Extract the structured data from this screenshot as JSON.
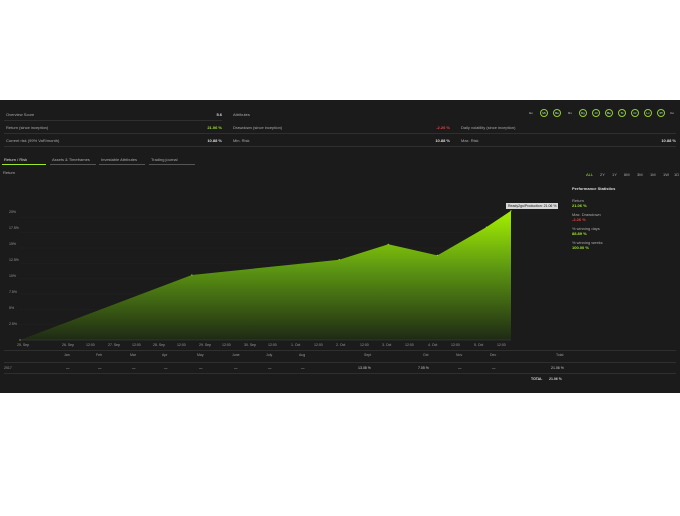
{
  "summary": {
    "overview_label": "Overview Score",
    "overview_value": "5.6",
    "return_label": "Return (since inception)",
    "return_value": "21.06 %",
    "current_risk_label": "Current risk (99% VaR/month)",
    "current_risk_value": "10.88 %",
    "attributes_label": "Attributes",
    "drawdown_label": "Drawdown (since inception)",
    "drawdown_value": "-2.26 %",
    "min_risk_label": "Min. Risk",
    "min_risk_value": "10.88 %",
    "daily_vol_label": "Daily volatility (since inception)",
    "daily_vol_value": "",
    "max_risk_label": "Max. Risk",
    "max_risk_value": "10.88 %"
  },
  "attribute_icons": [
    "Ex",
    "Mi",
    "Re",
    "Rs",
    "Dy",
    "Cl",
    "Be",
    "Tc",
    "Cr",
    "Lv",
    "Pf",
    "Co"
  ],
  "tabs": [
    "Return / Risk",
    "Assets & Timeframes",
    "Investable Attributes",
    "Trading journal"
  ],
  "chart_header": "Return",
  "ranges": [
    "ALL",
    "2Y",
    "1Y",
    "6M",
    "3M",
    "1M",
    "1W",
    "1D"
  ],
  "chart_data": {
    "type": "area",
    "x": [
      "25. Sep",
      "26. Sep",
      "12:00",
      "27. Sep",
      "12:00",
      "28. Sep",
      "12:00",
      "29. Sep",
      "12:00",
      "30. Sep",
      "12:00",
      "1. Oct",
      "12:00",
      "2. Oct",
      "12:00",
      "3. Oct",
      "12:00",
      "4. Oct",
      "12:00",
      "5. Oct",
      "12:00"
    ],
    "points": [
      {
        "x": "25. Sep",
        "y": 0
      },
      {
        "x": "29. Sep",
        "y": 10.6
      },
      {
        "x": "2. Oct",
        "y": 13.1
      },
      {
        "x": "3. Oct",
        "y": 15.6
      },
      {
        "x": "4. Oct",
        "y": 13.8
      },
      {
        "x": "5. Oct",
        "y": 18.4
      },
      {
        "x": "12:00",
        "y": 21.06
      }
    ],
    "y_ticks": [
      "20%",
      "17.5%",
      "15%",
      "12.5%",
      "10%",
      "7.5%",
      "5%",
      "2.5%"
    ],
    "ylim": [
      0,
      22.5
    ],
    "tooltip": "Ready2go/Production: 21.06 %",
    "color": "#9ee82a"
  },
  "stats": {
    "title": "Performance Statistics",
    "return_label": "Return",
    "return_value": "21.06 %",
    "maxdd_label": "Max. Drawdown",
    "maxdd_value": "-2.26 %",
    "windays_label": "% winning days",
    "windays_value": "88.89 %",
    "winweeks_label": "% winning weeks",
    "winweeks_value": "100.00 %"
  },
  "monthly": {
    "months": [
      "Jan",
      "Feb",
      "Mar",
      "Apr",
      "May",
      "June",
      "July",
      "Aug",
      "Sept",
      "Oct",
      "Nov",
      "Dec",
      "Total"
    ],
    "year": "2017",
    "values": [
      "—",
      "—",
      "—",
      "—",
      "—",
      "—",
      "—",
      "—",
      "13.08 %",
      "7.05 %",
      "—",
      "—",
      "21.06 %"
    ],
    "total_label": "TOTAL",
    "total_value": "21.06 %"
  }
}
